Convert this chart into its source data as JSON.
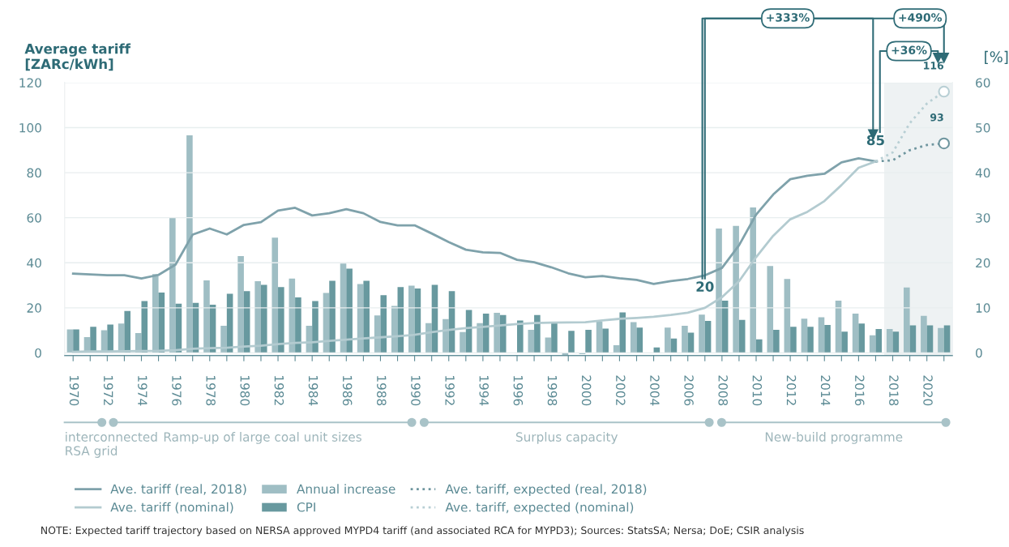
{
  "chart_data": {
    "type": "bar",
    "ylabel": "Average tariff\n[ZARc/kWh]",
    "y2label": "[%]",
    "xlim": [
      1969.5,
      2021.5
    ],
    "xticks": [
      1970,
      {
        "value": 1971,
        "label": null
      },
      1972,
      {
        "value": 1973,
        "label": null
      },
      1974,
      {
        "value": 1975,
        "label": null
      },
      1976,
      {
        "value": 1977,
        "label": null
      },
      1978,
      {
        "value": 1979,
        "label": null
      },
      1980,
      {
        "value": 1981,
        "label": null
      },
      1982,
      {
        "value": 1983,
        "label": null
      },
      1984,
      {
        "value": 1985,
        "label": null
      },
      1986,
      {
        "value": 1987,
        "label": null
      },
      1988,
      {
        "value": 1989,
        "label": null
      },
      1990,
      {
        "value": 1991,
        "label": null
      },
      1992,
      {
        "value": 1993,
        "label": null
      },
      1994,
      {
        "value": 1995,
        "label": null
      },
      1996,
      {
        "value": 1997,
        "label": null
      },
      1998,
      {
        "value": 1999,
        "label": null
      },
      2000,
      {
        "value": 2001,
        "label": null
      },
      2002,
      {
        "value": 2003,
        "label": null
      },
      2004,
      {
        "value": 2005,
        "label": null
      },
      2006,
      {
        "value": 2007,
        "label": null
      },
      2008,
      {
        "value": 2009,
        "label": null
      },
      2010,
      {
        "value": 2011,
        "label": null
      },
      2012,
      {
        "value": 2013,
        "label": null
      },
      2014,
      {
        "value": 2015,
        "label": null
      },
      2016,
      {
        "value": 2017,
        "label": null
      },
      2018,
      {
        "value": 2019,
        "label": null
      },
      2020,
      {
        "value": 2021,
        "label": null
      }
    ],
    "ylim": [
      -1.2,
      120
    ],
    "yticks": [
      0,
      20,
      40,
      60,
      80,
      100,
      120
    ],
    "y2lim": [
      -0.6,
      60
    ],
    "y2ticks": [
      0,
      10,
      20,
      30,
      40,
      50,
      60
    ],
    "grid": "y",
    "legend": "bottom",
    "series": [
      {
        "name": "Ave. tariff (real, 2018)",
        "type": "line",
        "color": "#7fa2ab",
        "line_style": "solid",
        "x": [
          1970,
          1971,
          1972,
          1973,
          1974,
          1975,
          1976,
          1977,
          1978,
          1979,
          1980,
          1981,
          1982,
          1983,
          1984,
          1985,
          1986,
          1987,
          1988,
          1989,
          1990,
          1991,
          1992,
          1993,
          1994,
          1995,
          1996,
          1997,
          1998,
          1999,
          2000,
          2001,
          2002,
          2003,
          2004,
          2005,
          2006,
          2007,
          2008,
          2009,
          2010,
          2011,
          2012,
          2013,
          2014,
          2015,
          2016,
          2017
        ],
        "values": [
          35.2,
          34.8,
          34.5,
          34.5,
          33.0,
          34.6,
          39.2,
          52.5,
          55.2,
          52.6,
          56.8,
          58.0,
          63.2,
          64.4,
          61.0,
          62.0,
          63.8,
          62.0,
          58.1,
          56.6,
          56.6,
          53.0,
          49.2,
          45.8,
          44.6,
          44.4,
          41.3,
          40.2,
          38.0,
          35.3,
          33.6,
          34.1,
          33.1,
          32.4,
          30.6,
          31.9,
          32.8,
          34.4,
          37.7,
          47.8,
          61.4,
          70.3,
          77.1,
          78.6,
          79.5,
          84.6,
          86.4,
          85
        ]
      },
      {
        "name": "Ave. tariff (nominal)",
        "type": "line",
        "color": "#b3cbd0",
        "line_style": "solid",
        "x": [
          1970,
          1971,
          1972,
          1973,
          1974,
          1975,
          1976,
          1977,
          1978,
          1979,
          1980,
          1981,
          1982,
          1983,
          1984,
          1985,
          1986,
          1987,
          1988,
          1989,
          1990,
          1991,
          1992,
          1993,
          1994,
          1995,
          1996,
          1997,
          1998,
          1999,
          2000,
          2001,
          2002,
          2003,
          2004,
          2005,
          2006,
          2007,
          2008,
          2009,
          2010,
          2011,
          2012,
          2013,
          2014,
          2015,
          2016,
          2017
        ],
        "values": [
          0.5,
          0.6,
          0.6,
          0.7,
          0.8,
          0.9,
          1.2,
          1.8,
          2.1,
          2.3,
          2.8,
          3.2,
          3.9,
          4.4,
          4.7,
          5.3,
          5.9,
          6.4,
          6.9,
          7.4,
          8.0,
          9.2,
          10.2,
          11.0,
          11.5,
          12.2,
          12.8,
          13.2,
          13.4,
          13.5,
          13.6,
          14.4,
          15.1,
          15.5,
          16.0,
          16.8,
          17.8,
          20,
          24.7,
          31.8,
          42.5,
          52,
          59.3,
          62.6,
          67.4,
          74.5,
          82.2,
          85
        ]
      },
      {
        "name": "Annual increase",
        "axis": "y2",
        "color": "#9fbec4",
        "x": [
          1970,
          1971,
          1972,
          1973,
          1974,
          1975,
          1976,
          1977,
          1978,
          1979,
          1980,
          1981,
          1982,
          1983,
          1984,
          1985,
          1986,
          1987,
          1988,
          1989,
          1990,
          1991,
          1992,
          1993,
          1994,
          1995,
          1996,
          1997,
          1998,
          1999,
          2000,
          2001,
          2002,
          2003,
          2004,
          2005,
          2006,
          2007,
          2008,
          2009,
          2010,
          2011,
          2012,
          2013,
          2014,
          2015,
          2016,
          2017,
          2018,
          2019,
          2020,
          2021
        ],
        "values": [
          5.2,
          3.5,
          5.0,
          6.5,
          4.4,
          17.5,
          30.0,
          48.3,
          16.1,
          6.0,
          21.5,
          15.9,
          25.6,
          16.5,
          6.0,
          13.3,
          19.8,
          15.3,
          8.3,
          10.4,
          14.9,
          6.6,
          7.5,
          4.6,
          6.6,
          8.9,
          null,
          5.1,
          3.4,
          -0.5,
          -0.3,
          6.9,
          1.7,
          6.8,
          0,
          5.6,
          6.0,
          8.5,
          27.6,
          28.2,
          32.3,
          19.3,
          16.4,
          7.6,
          7.9,
          11.6,
          8.7,
          3.9,
          5.3,
          14.5,
          8.2,
          5.5
        ]
      },
      {
        "name": "CPI",
        "axis": "y2",
        "color": "#68999f",
        "x": [
          1970,
          1971,
          1972,
          1973,
          1974,
          1975,
          1976,
          1977,
          1978,
          1979,
          1980,
          1981,
          1982,
          1983,
          1984,
          1985,
          1986,
          1987,
          1988,
          1989,
          1990,
          1991,
          1992,
          1993,
          1994,
          1995,
          1996,
          1997,
          1998,
          1999,
          2000,
          2001,
          2002,
          2003,
          2004,
          2005,
          2006,
          2007,
          2008,
          2009,
          2010,
          2011,
          2012,
          2013,
          2014,
          2015,
          2016,
          2017,
          2018,
          2019,
          2020,
          2021
        ],
        "values": [
          5.2,
          5.8,
          6.3,
          9.3,
          11.5,
          13.4,
          10.9,
          11.1,
          10.7,
          13.1,
          13.7,
          15.1,
          14.6,
          12.3,
          11.5,
          16.0,
          18.7,
          16.0,
          12.8,
          14.6,
          14.3,
          15.1,
          13.7,
          9.5,
          8.7,
          8.4,
          7.2,
          8.4,
          6.6,
          4.9,
          5.1,
          5.4,
          9.0,
          5.6,
          1.2,
          3.2,
          4.5,
          7.1,
          11.6,
          7.3,
          3.0,
          5.1,
          5.8,
          5.8,
          6.2,
          4.7,
          6.5,
          5.3,
          4.7,
          6.1,
          6.1,
          6.1
        ]
      },
      {
        "name": "Ave. tariff, expected (real, 2018)",
        "type": "line",
        "color": "#6f969f",
        "line_style": "dotted",
        "x": [
          2017,
          2018,
          2019,
          2020,
          2021
        ],
        "values": [
          85,
          85.5,
          90,
          92.3,
          93
        ]
      },
      {
        "name": "Ave. tariff, expected (nominal)",
        "type": "line",
        "color": "#b8cfd4",
        "line_style": "dotted",
        "x": [
          2017,
          2018,
          2019,
          2020,
          2021
        ],
        "values": [
          85,
          89,
          102,
          110.7,
          116
        ]
      }
    ],
    "bands": [
      {
        "axis": "x",
        "from": 2017.5,
        "to": 2021.5,
        "color": "#eef2f3"
      }
    ],
    "annotations": [
      {
        "text": "20",
        "x": 2007,
        "y": 20
      },
      {
        "text": "85",
        "x": 2017,
        "y": 85
      },
      {
        "text": "116",
        "x": 2021,
        "y": 116
      },
      {
        "text": "93",
        "x": 2021,
        "y": 93
      },
      "+333%",
      "+490%",
      "+36%",
      "interconnected\nRSA grid",
      "Ramp-up of large coal unit sizes",
      "Surplus capacity",
      "New-build programme",
      "NOTE: Expected tariff trajectory based on NERSA approved MYPD4 tariff (and associated RCA for MYPD3); Sources: StatsSA; Nersa; DoE; CSIR analysis"
    ]
  }
}
